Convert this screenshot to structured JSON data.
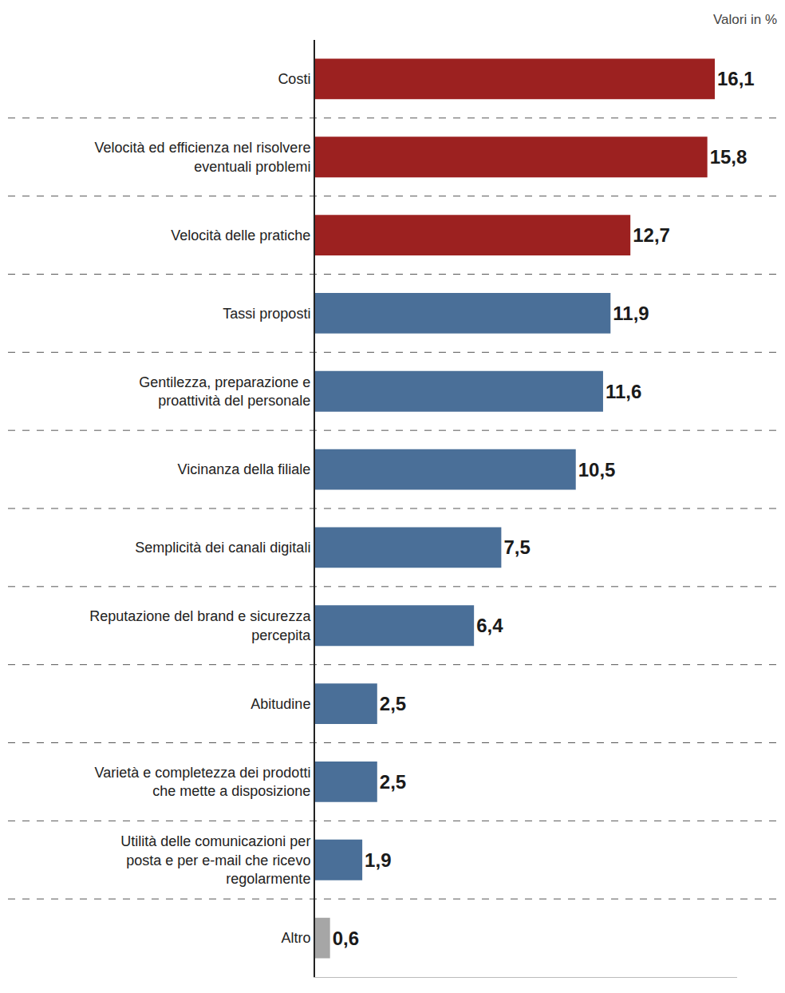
{
  "chart_data": {
    "type": "bar",
    "orientation": "horizontal",
    "subtitle": "Valori in %",
    "categories": [
      "Costi",
      "Velocità ed efficienza nel risolvere eventuali problemi",
      "Velocità delle pratiche",
      "Tassi proposti",
      "Gentilezza, preparazione e proattività del personale",
      "Vicinanza della filiale",
      "Semplicità dei canali digitali",
      "Reputazione del brand e sicurezza percepita",
      "Abitudine",
      "Varietà e completezza dei prodotti che mette a disposizione",
      "Utilità delle comunicazioni per posta e per e-mail che ricevo regolarmente",
      "Altro"
    ],
    "values": [
      16.1,
      15.8,
      12.7,
      11.9,
      11.6,
      10.5,
      7.5,
      6.4,
      2.5,
      2.5,
      1.9,
      0.6
    ],
    "value_labels": [
      "16,1",
      "15,8",
      "12,7",
      "11,9",
      "11,6",
      "10,5",
      "7,5",
      "6,4",
      "2,5",
      "2,5",
      "1,9",
      "0,6"
    ],
    "colors": [
      "#9c2120",
      "#9c2120",
      "#9c2120",
      "#4a6f98",
      "#4a6f98",
      "#4a6f98",
      "#4a6f98",
      "#4a6f98",
      "#4a6f98",
      "#4a6f98",
      "#4a6f98",
      "#a6a6a6"
    ],
    "xlim": [
      0,
      17
    ],
    "xticks": [],
    "grid": false,
    "data_labels": true,
    "tick_labels": "y"
  }
}
